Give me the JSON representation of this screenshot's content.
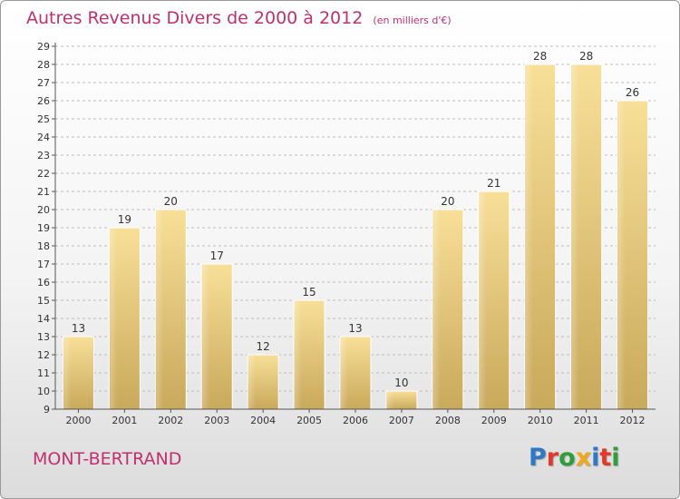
{
  "title": "Autres Revenus Divers de 2000 à 2012",
  "unit": "(en milliers d'€)",
  "location": "MONT-BERTRAND",
  "logo": {
    "letters": [
      "P",
      "r",
      "o",
      "x",
      "i",
      "t",
      "i"
    ],
    "colors": [
      "#2f78c5",
      "#e4372c",
      "#2f9d3b",
      "#f2a81d",
      "#2f78c5",
      "#e4372c",
      "#2f9d3b"
    ]
  },
  "chart_data": {
    "type": "bar",
    "categories": [
      "2000",
      "2001",
      "2002",
      "2003",
      "2004",
      "2005",
      "2006",
      "2007",
      "2008",
      "2009",
      "2010",
      "2011",
      "2012"
    ],
    "values": [
      13,
      19,
      20,
      17,
      12,
      15,
      13,
      10,
      20,
      21,
      28,
      28,
      26
    ],
    "yticks": [
      9,
      10,
      11,
      12,
      13,
      14,
      15,
      16,
      17,
      18,
      19,
      20,
      21,
      22,
      23,
      24,
      25,
      26,
      27,
      28,
      29
    ],
    "ylim": [
      9,
      29
    ],
    "grid": true,
    "bar_color": "#e8c87a"
  }
}
